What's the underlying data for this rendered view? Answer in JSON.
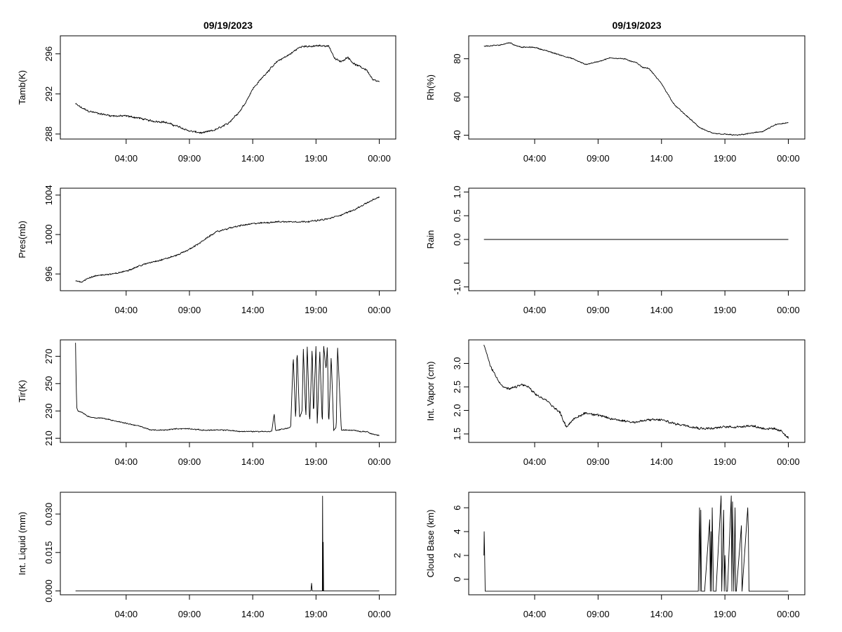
{
  "page_titles": [
    "09/19/2023",
    "09/19/2023"
  ],
  "chart_data": [
    {
      "id": "tamb",
      "type": "line",
      "title": "09/19/2023",
      "ylabel": "Tamb(K)",
      "xlabel": "",
      "x_range_hours": [
        -1.2,
        25.3
      ],
      "ylim": [
        287.5,
        297.8
      ],
      "yticks": [
        288,
        292,
        296
      ],
      "ytick_labels": [
        "288",
        "292",
        "296"
      ],
      "xticks_hours": [
        4,
        9,
        14,
        19,
        24
      ],
      "xtick_labels": [
        "04:00",
        "09:00",
        "14:00",
        "19:00",
        "00:00"
      ],
      "data_x_range": [
        0,
        24
      ],
      "x": [
        0.0,
        0.5,
        1.0,
        2.0,
        3.0,
        4.0,
        5.0,
        6.0,
        7.0,
        8.0,
        9.0,
        10.0,
        11.0,
        12.0,
        13.0,
        13.5,
        14.0,
        15.0,
        16.0,
        17.0,
        17.5,
        18.0,
        18.5,
        19.0,
        19.5,
        20.0,
        20.5,
        21.0,
        21.5,
        22.0,
        23.0,
        23.5,
        24.0
      ],
      "y": [
        291.0,
        290.6,
        290.3,
        290.0,
        289.8,
        289.8,
        289.6,
        289.3,
        289.2,
        288.8,
        288.3,
        288.1,
        288.4,
        289.0,
        290.3,
        291.3,
        292.5,
        294.0,
        295.3,
        296.0,
        296.5,
        296.8,
        296.7,
        296.8,
        296.8,
        296.8,
        295.5,
        295.2,
        295.7,
        295.0,
        294.4,
        293.4,
        293.2
      ],
      "noise": 0.15
    },
    {
      "id": "rh",
      "type": "line",
      "title": "09/19/2023",
      "ylabel": "Rh(%)",
      "xlabel": "",
      "x_range_hours": [
        -1.2,
        25.3
      ],
      "ylim": [
        38,
        92
      ],
      "yticks": [
        40,
        60,
        80
      ],
      "ytick_labels": [
        "40",
        "60",
        "80"
      ],
      "xticks_hours": [
        4,
        9,
        14,
        19,
        24
      ],
      "xtick_labels": [
        "04:00",
        "09:00",
        "14:00",
        "19:00",
        "00:00"
      ],
      "data_x_range": [
        0,
        24
      ],
      "x": [
        0.0,
        1.0,
        1.5,
        2.0,
        2.5,
        3.0,
        4.0,
        5.0,
        6.0,
        7.0,
        8.0,
        9.0,
        10.0,
        11.0,
        12.0,
        12.5,
        13.0,
        14.0,
        15.0,
        16.0,
        17.0,
        18.0,
        19.0,
        20.0,
        21.0,
        22.0,
        23.0,
        24.0
      ],
      "y": [
        86.5,
        87.0,
        87.5,
        88.5,
        87.0,
        86.0,
        86.0,
        84.0,
        82.0,
        80.0,
        77.0,
        78.5,
        80.5,
        80.0,
        78.0,
        75.5,
        75.0,
        67.0,
        56.0,
        50.0,
        44.0,
        41.0,
        40.5,
        40.0,
        41.0,
        42.0,
        45.5,
        46.5
      ],
      "noise": 0.45
    },
    {
      "id": "pres",
      "type": "line",
      "title": "",
      "ylabel": "Pres(mb)",
      "xlabel": "",
      "x_range_hours": [
        -1.2,
        25.3
      ],
      "ylim": [
        994.3,
        1004.7
      ],
      "yticks": [
        996,
        1000,
        1004
      ],
      "ytick_labels": [
        "996",
        "1000",
        "1004"
      ],
      "xticks_hours": [
        4,
        9,
        14,
        19,
        24
      ],
      "xtick_labels": [
        "04:00",
        "09:00",
        "14:00",
        "19:00",
        "00:00"
      ],
      "data_x_range": [
        0,
        24
      ],
      "x": [
        0.0,
        0.5,
        1.0,
        2.0,
        3.0,
        4.0,
        5.0,
        6.0,
        7.0,
        8.0,
        9.0,
        10.0,
        11.0,
        12.0,
        13.0,
        14.0,
        15.0,
        16.0,
        17.0,
        18.0,
        19.0,
        20.0,
        21.0,
        22.0,
        23.0,
        24.0
      ],
      "y": [
        995.3,
        995.2,
        995.6,
        995.9,
        996.0,
        996.3,
        996.8,
        997.2,
        997.5,
        997.9,
        998.5,
        999.3,
        1000.2,
        1000.6,
        1000.9,
        1001.1,
        1001.2,
        1001.3,
        1001.3,
        1001.3,
        1001.4,
        1001.6,
        1002.0,
        1002.5,
        1003.2,
        1003.8
      ],
      "noise": 0.12
    },
    {
      "id": "rain",
      "type": "line",
      "title": "",
      "ylabel": "Rain",
      "xlabel": "",
      "x_range_hours": [
        -1.2,
        25.3
      ],
      "ylim": [
        -1.08,
        1.08
      ],
      "yticks": [
        -1.0,
        -0.5,
        0.0,
        0.5,
        1.0
      ],
      "ytick_labels": [
        "-1.0",
        "",
        "0.0",
        "0.5",
        "1.0"
      ],
      "xticks_hours": [
        4,
        9,
        14,
        19,
        24
      ],
      "xtick_labels": [
        "04:00",
        "09:00",
        "14:00",
        "19:00",
        "00:00"
      ],
      "data_x_range": [
        0,
        24
      ],
      "x": [
        0,
        24
      ],
      "y": [
        0,
        0
      ],
      "noise": 0
    },
    {
      "id": "tir",
      "type": "line",
      "title": "",
      "ylabel": "Tir(K)",
      "xlabel": "",
      "x_range_hours": [
        -1.2,
        25.3
      ],
      "ylim": [
        207,
        282
      ],
      "yticks": [
        210,
        230,
        250,
        270
      ],
      "ytick_labels": [
        "210",
        "230",
        "250",
        "270"
      ],
      "xticks_hours": [
        4,
        9,
        14,
        19,
        24
      ],
      "xtick_labels": [
        "04:00",
        "09:00",
        "14:00",
        "19:00",
        "00:00"
      ],
      "data_x_range": [
        0,
        24
      ],
      "x": [
        0.0,
        0.05,
        0.1,
        0.2,
        0.5,
        1.0,
        1.5,
        2.0,
        3.0,
        4.0,
        5.0,
        6.0,
        7.0,
        8.0,
        9.0,
        10.0,
        11.0,
        12.0,
        13.0,
        14.0,
        15.0,
        15.5,
        15.7,
        15.8,
        16.0,
        16.5,
        17.0,
        17.2,
        17.4,
        17.5,
        17.7,
        17.9,
        18.0,
        18.2,
        18.3,
        18.5,
        18.7,
        18.8,
        19.0,
        19.1,
        19.3,
        19.5,
        19.6,
        19.8,
        19.9,
        20.0,
        20.2,
        20.4,
        20.6,
        20.7,
        21.0,
        21.5,
        22.0,
        22.5,
        23.0,
        23.5,
        24.0
      ],
      "y": [
        280,
        250,
        232,
        230,
        229,
        226,
        225,
        225,
        223,
        221,
        219,
        216,
        216,
        217,
        217,
        216,
        216,
        216,
        215,
        215,
        215,
        215,
        228,
        216,
        216,
        217,
        218,
        270,
        222,
        276,
        225,
        230,
        275,
        224,
        279,
        220,
        278,
        226,
        279,
        219,
        274,
        219,
        278,
        260,
        279,
        218,
        270,
        216,
        218,
        278,
        216,
        216,
        216,
        215,
        215,
        213,
        212
      ],
      "noise": 0.6
    },
    {
      "id": "vapor",
      "type": "line",
      "title": "",
      "ylabel": "Int. Vapor (cm)",
      "xlabel": "",
      "x_range_hours": [
        -1.2,
        25.3
      ],
      "ylim": [
        1.32,
        3.5
      ],
      "yticks": [
        1.5,
        2.0,
        2.5,
        3.0
      ],
      "ytick_labels": [
        "1.5",
        "2.0",
        "2.5",
        "3.0"
      ],
      "xticks_hours": [
        4,
        9,
        14,
        19,
        24
      ],
      "xtick_labels": [
        "04:00",
        "09:00",
        "14:00",
        "19:00",
        "00:00"
      ],
      "data_x_range": [
        0,
        24
      ],
      "x": [
        0.0,
        0.5,
        1.0,
        1.5,
        2.0,
        2.5,
        3.0,
        3.5,
        4.0,
        5.0,
        6.0,
        6.5,
        7.0,
        8.0,
        9.0,
        10.0,
        11.0,
        12.0,
        13.0,
        14.0,
        15.0,
        16.0,
        17.0,
        18.0,
        19.0,
        20.0,
        21.0,
        22.0,
        23.0,
        23.5,
        24.0
      ],
      "y": [
        3.4,
        2.95,
        2.7,
        2.5,
        2.45,
        2.5,
        2.55,
        2.5,
        2.35,
        2.2,
        1.95,
        1.65,
        1.8,
        1.95,
        1.9,
        1.82,
        1.78,
        1.75,
        1.8,
        1.8,
        1.72,
        1.68,
        1.62,
        1.62,
        1.65,
        1.65,
        1.68,
        1.62,
        1.6,
        1.55,
        1.42
      ],
      "noise": 0.04
    },
    {
      "id": "liquid",
      "type": "line",
      "title": "",
      "ylabel": "Int. Liquid (mm)",
      "xlabel": "",
      "x_range_hours": [
        -1.2,
        25.3
      ],
      "ylim": [
        -0.0015,
        0.0385
      ],
      "yticks": [
        0.0,
        0.015,
        0.03
      ],
      "ytick_labels": [
        "0.000",
        "0.015",
        "0.030"
      ],
      "xticks_hours": [
        4,
        9,
        14,
        19,
        24
      ],
      "xtick_labels": [
        "04:00",
        "09:00",
        "14:00",
        "19:00",
        "00:00"
      ],
      "data_x_range": [
        0,
        24
      ],
      "x": [
        0.0,
        18.6,
        18.65,
        18.7,
        18.75,
        19.5,
        19.52,
        19.55,
        19.57,
        19.6,
        19.62,
        24.0
      ],
      "y": [
        0.0,
        0.0,
        0.003,
        0.0,
        0.0,
        0.0,
        0.037,
        0.0,
        0.019,
        0.0,
        0.0,
        0.0
      ],
      "noise": 0
    },
    {
      "id": "cloudbase",
      "type": "line",
      "title": "",
      "ylabel": "Cloud Base (km)",
      "xlabel": "",
      "x_range_hours": [
        -1.2,
        25.3
      ],
      "ylim": [
        -1.3,
        7.3
      ],
      "yticks": [
        0,
        2,
        4,
        6
      ],
      "ytick_labels": [
        "0",
        "2",
        "4",
        "6"
      ],
      "xticks_hours": [
        4,
        9,
        14,
        19,
        24
      ],
      "xtick_labels": [
        "04:00",
        "09:00",
        "14:00",
        "19:00",
        "00:00"
      ],
      "data_x_range": [
        0,
        24
      ],
      "x": [
        0.0,
        0.02,
        0.05,
        0.1,
        0.12,
        16.9,
        17.0,
        17.05,
        17.1,
        17.15,
        17.3,
        17.4,
        17.8,
        17.85,
        17.9,
        17.95,
        18.0,
        18.1,
        18.2,
        18.3,
        18.7,
        18.75,
        18.9,
        18.95,
        19.0,
        19.1,
        19.2,
        19.5,
        19.55,
        19.6,
        19.7,
        19.8,
        19.85,
        19.9,
        20.3,
        20.35,
        20.8,
        20.85,
        20.9,
        21.0,
        24.0
      ],
      "y": [
        2.0,
        4.0,
        2.5,
        -1.0,
        -1.0,
        -1.0,
        6.0,
        -1.0,
        5.8,
        -1.0,
        -1.0,
        -1.0,
        5.0,
        -1.0,
        4.0,
        -1.0,
        6.0,
        -1.0,
        -1.0,
        -1.0,
        7.0,
        -1.0,
        5.8,
        -1.0,
        2.0,
        -1.0,
        -1.0,
        7.0,
        -1.0,
        6.5,
        -1.0,
        6.0,
        -1.0,
        -1.0,
        4.5,
        -1.0,
        6.0,
        4.0,
        -1.0,
        -1.0,
        -1.0
      ],
      "noise": 0
    }
  ]
}
